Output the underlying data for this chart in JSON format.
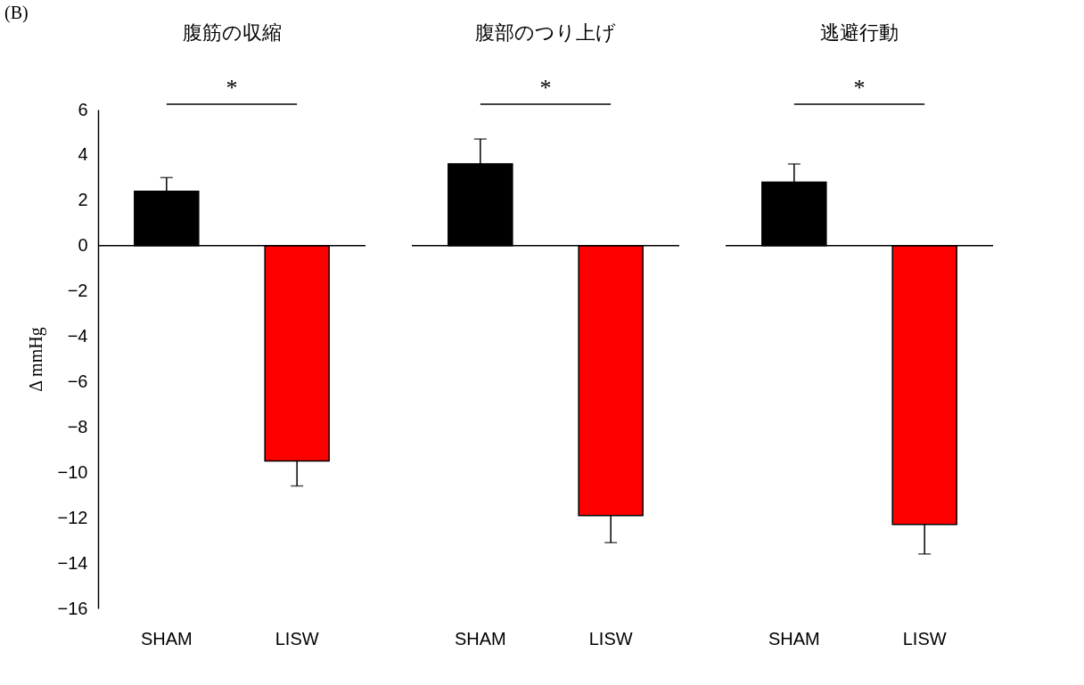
{
  "chart_data": [
    {
      "type": "bar",
      "title": "腹筋の収縮",
      "ylabel": "Δ mmHg",
      "categories": [
        "SHAM",
        "LISW"
      ],
      "values": [
        2.4,
        -9.5
      ],
      "colors": [
        "#000000",
        "#ff0000"
      ],
      "errors": [
        [
          2.4,
          3.0
        ],
        [
          -10.6,
          -9.5
        ]
      ],
      "ylim": [
        -16,
        6
      ],
      "yticks": [
        -16,
        -14,
        -12,
        -10,
        -8,
        -6,
        -4,
        -2,
        0,
        2,
        4,
        6
      ],
      "annotations": [
        "(B)",
        "*"
      ]
    },
    {
      "type": "bar",
      "title": "腹部のつり上げ",
      "categories": [
        "SHAM",
        "LISW"
      ],
      "values": [
        3.6,
        -11.9
      ],
      "colors": [
        "#000000",
        "#ff0000"
      ],
      "errors": [
        [
          3.6,
          4.7
        ],
        [
          -13.1,
          -11.9
        ]
      ],
      "ylim": [
        -16,
        6
      ],
      "yticks": [
        -16,
        -14,
        -12,
        -10,
        -8,
        -6,
        -4,
        -2,
        0,
        2,
        4,
        6
      ],
      "tick_labels": "x",
      "annotations": [
        "*"
      ]
    },
    {
      "type": "bar",
      "title": "逃避行動",
      "categories": [
        "SHAM",
        "LISW"
      ],
      "values": [
        2.8,
        -12.3
      ],
      "colors": [
        "#000000",
        "#ff0000"
      ],
      "errors": [
        [
          2.8,
          3.6
        ],
        [
          -13.6,
          -12.3
        ]
      ],
      "ylim": [
        -16,
        6
      ],
      "yticks": [
        -16,
        -14,
        -12,
        -10,
        -8,
        -6,
        -4,
        -2,
        0,
        2,
        4,
        6
      ],
      "tick_labels": "x",
      "annotations": [
        "*"
      ]
    }
  ]
}
